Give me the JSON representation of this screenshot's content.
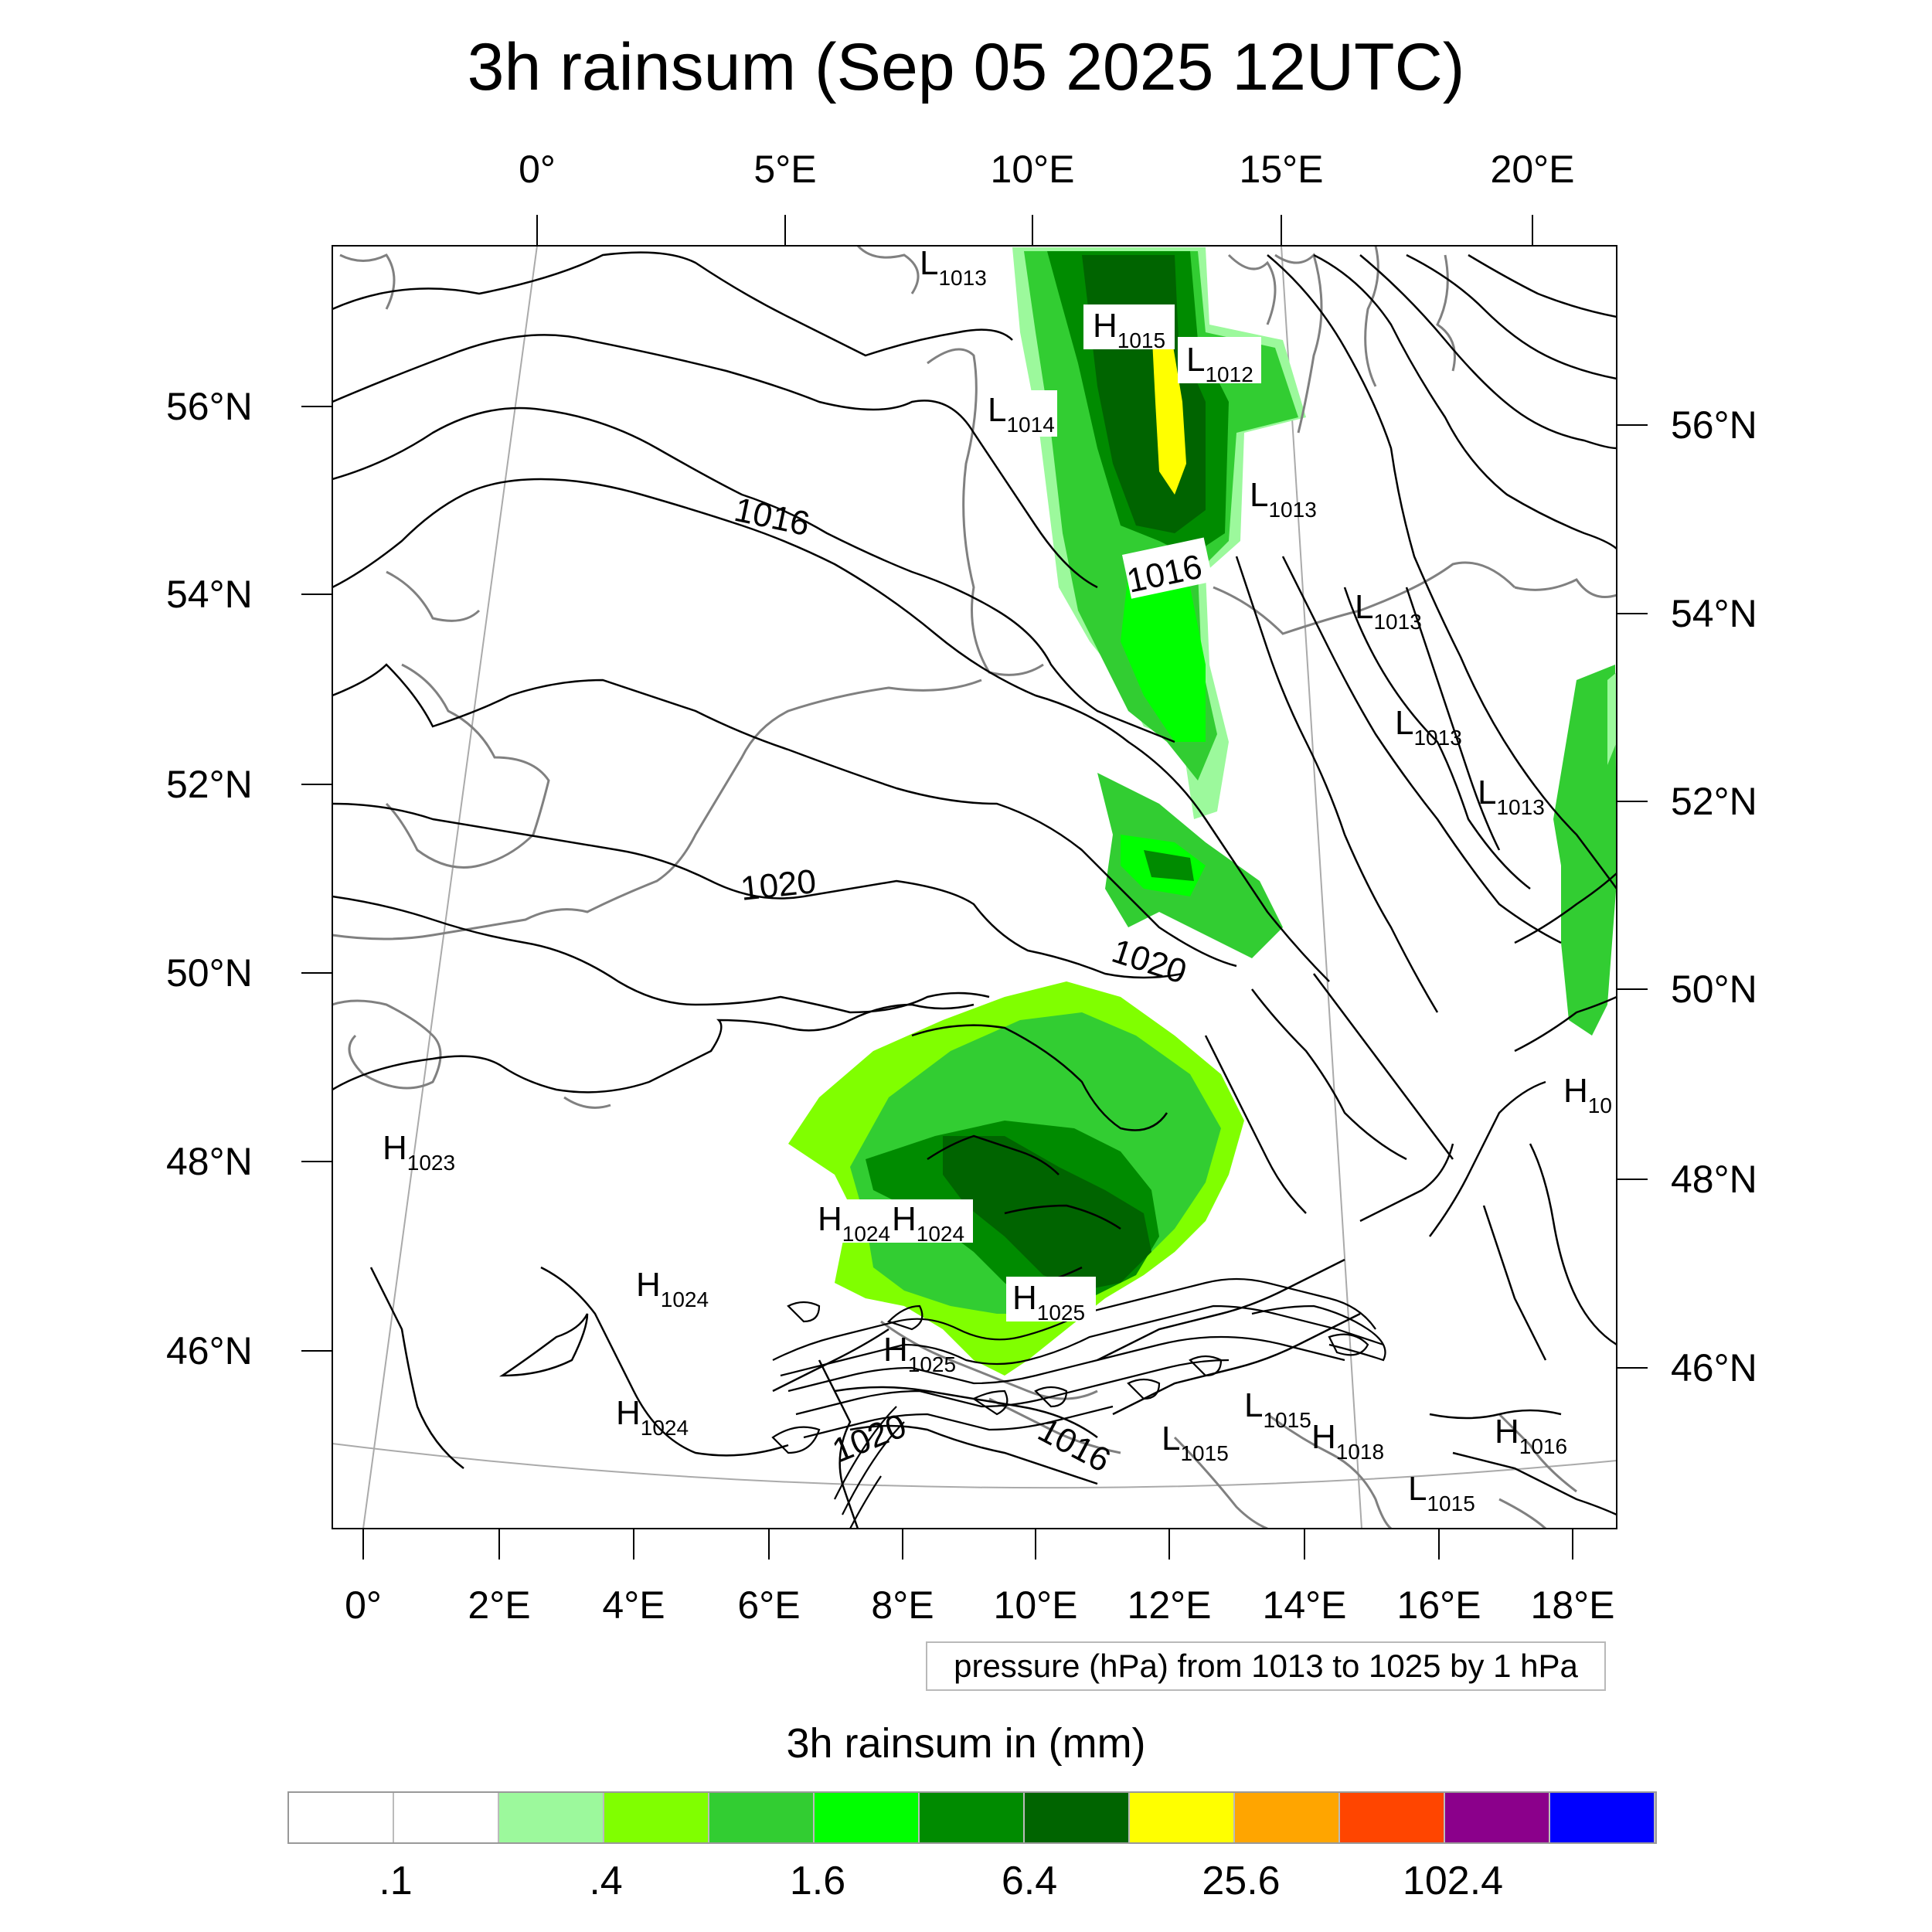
{
  "title": "3h rainsum (Sep 05 2025 12UTC)",
  "top_axis": {
    "labels": [
      "0°",
      "5°E",
      "10°E",
      "15°E",
      "20°E"
    ]
  },
  "bottom_axis": {
    "labels": [
      "0°",
      "2°E",
      "4°E",
      "6°E",
      "8°E",
      "10°E",
      "12°E",
      "14°E",
      "16°E",
      "18°E"
    ]
  },
  "left_axis": {
    "labels": [
      "56°N",
      "54°N",
      "52°N",
      "50°N",
      "48°N",
      "46°N"
    ]
  },
  "right_axis": {
    "labels": [
      "56°N",
      "54°N",
      "52°N",
      "50°N",
      "48°N",
      "46°N"
    ]
  },
  "info_box": "pressure (hPa) from 1013 to 1025 by 1 hPa",
  "legend": {
    "title": "3h rainsum in (mm)",
    "colors": [
      "#ffffff",
      "#ffffff",
      "#9cf99c",
      "#80ff00",
      "#32cd32",
      "#00ff00",
      "#008b00",
      "#006400",
      "#ffff00",
      "#ffa500",
      "#ff4500",
      "#8b008b",
      "#0000ff"
    ],
    "tick_labels": [
      ".1",
      ".4",
      "1.6",
      "6.4",
      "25.6",
      "102.4"
    ]
  },
  "pressure_labels": {
    "iso_1016_a": "1016",
    "iso_1016_b": "1016",
    "iso_1016_c": "1016",
    "iso_1020_a": "1020",
    "iso_1020_b": "1020",
    "iso_1020_c": "1020"
  },
  "pressure_centers": [
    {
      "letter": "L",
      "value": "1013"
    },
    {
      "letter": "H",
      "value": "1015"
    },
    {
      "letter": "L",
      "value": "1012"
    },
    {
      "letter": "L",
      "value": "1014"
    },
    {
      "letter": "L",
      "value": "1013"
    },
    {
      "letter": "L",
      "value": "1013"
    },
    {
      "letter": "L",
      "value": "1013"
    },
    {
      "letter": "L",
      "value": "1013"
    },
    {
      "letter": "H",
      "value": "1023"
    },
    {
      "letter": "H",
      "value": "1024"
    },
    {
      "letter": "H",
      "value": "1024"
    },
    {
      "letter": "H",
      "value": "1024"
    },
    {
      "letter": "H",
      "value": "1024"
    },
    {
      "letter": "H",
      "value": "1025"
    },
    {
      "letter": "H",
      "value": "1025"
    },
    {
      "letter": "L",
      "value": "1015"
    },
    {
      "letter": "L",
      "value": "1015"
    },
    {
      "letter": "H",
      "value": "1018"
    },
    {
      "letter": "H",
      "value": "1016"
    },
    {
      "letter": "L",
      "value": "1015"
    },
    {
      "letter": "H",
      "value": "10"
    }
  ]
}
